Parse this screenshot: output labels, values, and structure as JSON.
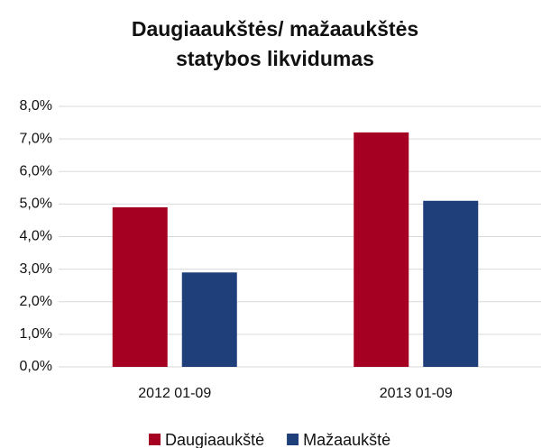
{
  "chart_data": {
    "type": "bar",
    "title": "Daugiaaukštės/ mažaaukštės statybos likvidumas",
    "categories": [
      "2012 01-09",
      "2013 01-09"
    ],
    "series": [
      {
        "name": "Daugiaaukštė",
        "color": "#a50021",
        "values": [
          4.9,
          7.2
        ]
      },
      {
        "name": "Mažaaukštė",
        "color": "#1f3f7a",
        "values": [
          2.9,
          5.1
        ]
      }
    ],
    "ylim": [
      0,
      8
    ],
    "yticks": [
      {
        "value": 0,
        "label": "0,0%"
      },
      {
        "value": 1,
        "label": "1,0%"
      },
      {
        "value": 2,
        "label": "2,0%"
      },
      {
        "value": 3,
        "label": "3,0%"
      },
      {
        "value": 4,
        "label": "4,0%"
      },
      {
        "value": 5,
        "label": "5,0%"
      },
      {
        "value": 6,
        "label": "6,0%"
      },
      {
        "value": 7,
        "label": "7,0%"
      },
      {
        "value": 8,
        "label": "8,0%"
      }
    ],
    "grid": true,
    "legend": "bottom"
  }
}
